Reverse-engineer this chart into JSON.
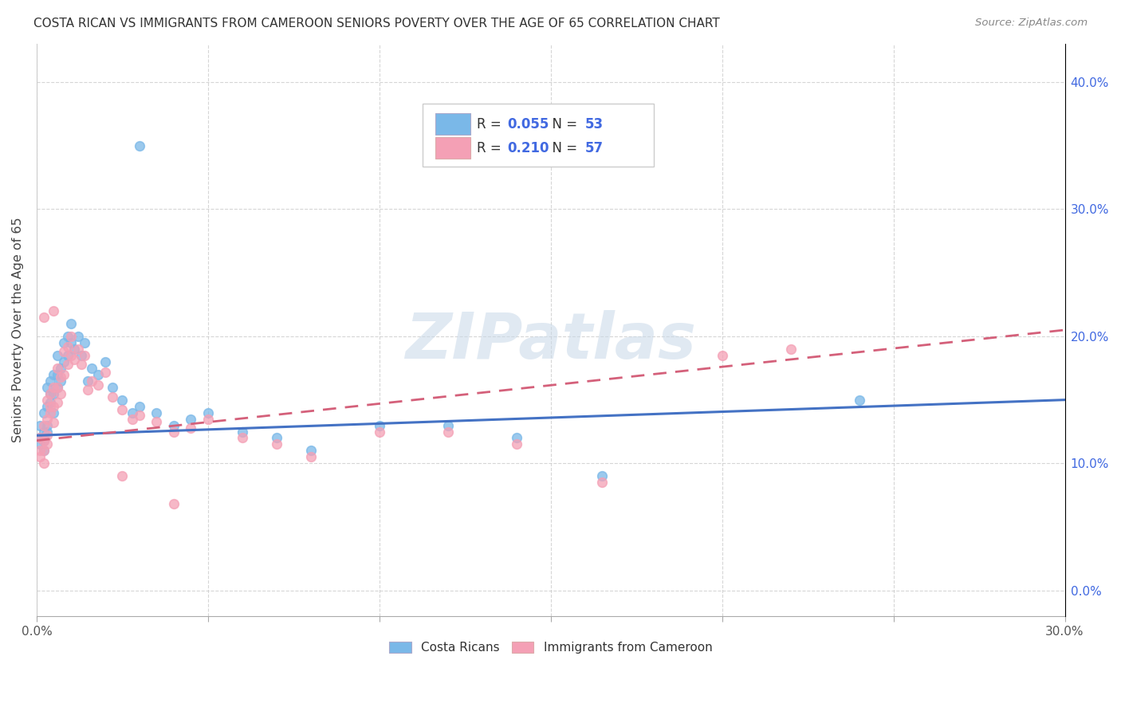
{
  "title": "COSTA RICAN VS IMMIGRANTS FROM CAMEROON SENIORS POVERTY OVER THE AGE OF 65 CORRELATION CHART",
  "source": "Source: ZipAtlas.com",
  "ylabel": "Seniors Poverty Over the Age of 65",
  "xlim": [
    0.0,
    0.3
  ],
  "ylim": [
    -0.02,
    0.43
  ],
  "series1_label": "Costa Ricans",
  "series1_R": "0.055",
  "series1_N": "53",
  "series1_color": "#7ab8e8",
  "series1_trendline_color": "#4472c4",
  "series2_label": "Immigrants from Cameroon",
  "series2_R": "0.210",
  "series2_N": "57",
  "series2_color": "#f4a0b5",
  "series2_trendline_color": "#d4607a",
  "legend_color": "#4169e1",
  "watermark": "ZIPatlas",
  "background_color": "#ffffff",
  "grid_color": "#cccccc",
  "series1_x": [
    0.001,
    0.001,
    0.001,
    0.002,
    0.002,
    0.002,
    0.002,
    0.003,
    0.003,
    0.003,
    0.003,
    0.004,
    0.004,
    0.004,
    0.005,
    0.005,
    0.005,
    0.006,
    0.006,
    0.006,
    0.007,
    0.007,
    0.008,
    0.008,
    0.009,
    0.009,
    0.01,
    0.01,
    0.011,
    0.012,
    0.013,
    0.014,
    0.015,
    0.016,
    0.018,
    0.02,
    0.022,
    0.025,
    0.028,
    0.03,
    0.035,
    0.04,
    0.045,
    0.05,
    0.06,
    0.07,
    0.08,
    0.1,
    0.12,
    0.14,
    0.165,
    0.24,
    0.03
  ],
  "series1_y": [
    0.13,
    0.12,
    0.115,
    0.14,
    0.125,
    0.11,
    0.118,
    0.16,
    0.145,
    0.13,
    0.125,
    0.155,
    0.165,
    0.148,
    0.17,
    0.155,
    0.14,
    0.185,
    0.17,
    0.16,
    0.175,
    0.165,
    0.195,
    0.18,
    0.2,
    0.185,
    0.21,
    0.195,
    0.19,
    0.2,
    0.185,
    0.195,
    0.165,
    0.175,
    0.17,
    0.18,
    0.16,
    0.15,
    0.14,
    0.145,
    0.14,
    0.13,
    0.135,
    0.14,
    0.125,
    0.12,
    0.11,
    0.13,
    0.13,
    0.12,
    0.09,
    0.15,
    0.35
  ],
  "series2_x": [
    0.001,
    0.001,
    0.001,
    0.002,
    0.002,
    0.002,
    0.002,
    0.003,
    0.003,
    0.003,
    0.003,
    0.004,
    0.004,
    0.004,
    0.005,
    0.005,
    0.005,
    0.006,
    0.006,
    0.006,
    0.007,
    0.007,
    0.008,
    0.008,
    0.009,
    0.009,
    0.01,
    0.01,
    0.011,
    0.012,
    0.013,
    0.014,
    0.015,
    0.016,
    0.018,
    0.02,
    0.022,
    0.025,
    0.028,
    0.03,
    0.035,
    0.04,
    0.045,
    0.05,
    0.06,
    0.07,
    0.08,
    0.1,
    0.12,
    0.14,
    0.165,
    0.2,
    0.22,
    0.025,
    0.04,
    0.005,
    0.002
  ],
  "series2_y": [
    0.12,
    0.11,
    0.105,
    0.13,
    0.118,
    0.1,
    0.11,
    0.15,
    0.135,
    0.122,
    0.115,
    0.145,
    0.155,
    0.14,
    0.16,
    0.145,
    0.132,
    0.175,
    0.16,
    0.148,
    0.168,
    0.155,
    0.188,
    0.17,
    0.192,
    0.178,
    0.2,
    0.185,
    0.182,
    0.19,
    0.178,
    0.185,
    0.158,
    0.165,
    0.162,
    0.172,
    0.152,
    0.142,
    0.135,
    0.138,
    0.133,
    0.125,
    0.128,
    0.135,
    0.12,
    0.115,
    0.105,
    0.125,
    0.125,
    0.115,
    0.085,
    0.185,
    0.19,
    0.09,
    0.068,
    0.22,
    0.215
  ],
  "trendline1_x0": 0.0,
  "trendline1_y0": 0.122,
  "trendline1_x1": 0.3,
  "trendline1_y1": 0.15,
  "trendline2_x0": 0.0,
  "trendline2_y0": 0.118,
  "trendline2_x1": 0.3,
  "trendline2_y1": 0.205
}
